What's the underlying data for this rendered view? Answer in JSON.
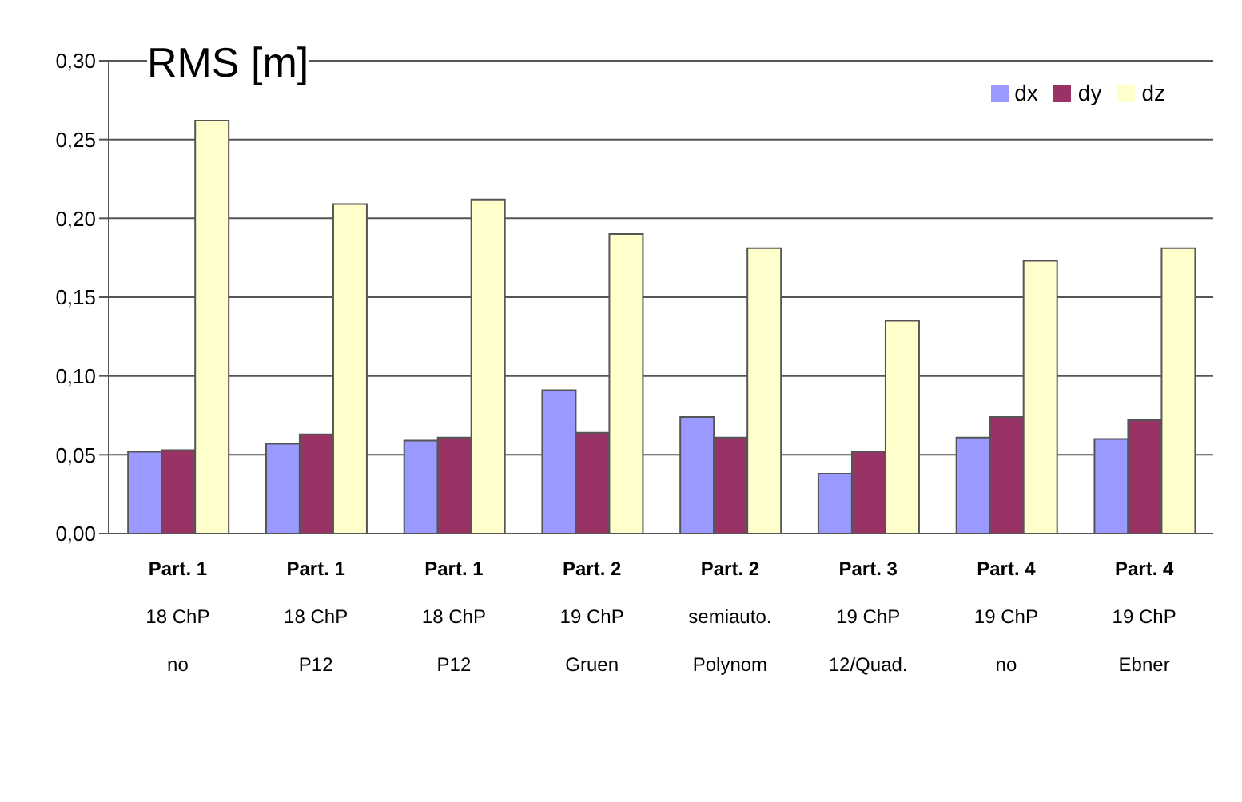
{
  "chart_data": {
    "type": "bar",
    "title": "RMS [m]",
    "categories": [
      "Part. 1\n18 ChP\nno",
      "Part. 1\n18 ChP\nP12",
      "Part. 1\n18 ChP\nP12",
      "Part. 2\n19 ChP\nGruen",
      "Part. 2\nsemiauto.\nPolynom",
      "Part. 3\n19 ChP\n12/Quad.",
      "Part. 4\n19 ChP\nno",
      "Part. 4\n19 ChP\nEbner"
    ],
    "series": [
      {
        "name": "dx",
        "color": "#9999ff",
        "values": [
          0.052,
          0.057,
          0.059,
          0.091,
          0.074,
          0.038,
          0.061,
          0.06
        ]
      },
      {
        "name": "dy",
        "color": "#993366",
        "values": [
          0.053,
          0.063,
          0.061,
          0.064,
          0.061,
          0.052,
          0.074,
          0.072
        ]
      },
      {
        "name": "dz",
        "color": "#ffffcc",
        "values": [
          0.262,
          0.209,
          0.212,
          0.19,
          0.181,
          0.135,
          0.173,
          0.181
        ]
      }
    ],
    "ylim": [
      0,
      0.3
    ],
    "yticks": [
      {
        "value": 0,
        "label": "0,00"
      },
      {
        "value": 0.05,
        "label": "0,05"
      },
      {
        "value": 0.1,
        "label": "0,10"
      },
      {
        "value": 0.15,
        "label": "0,15"
      },
      {
        "value": 0.2,
        "label": "0,20"
      },
      {
        "value": 0.25,
        "label": "0,25"
      },
      {
        "value": 0.3,
        "label": "0,30"
      }
    ],
    "grid": "y",
    "legend": "top right"
  }
}
